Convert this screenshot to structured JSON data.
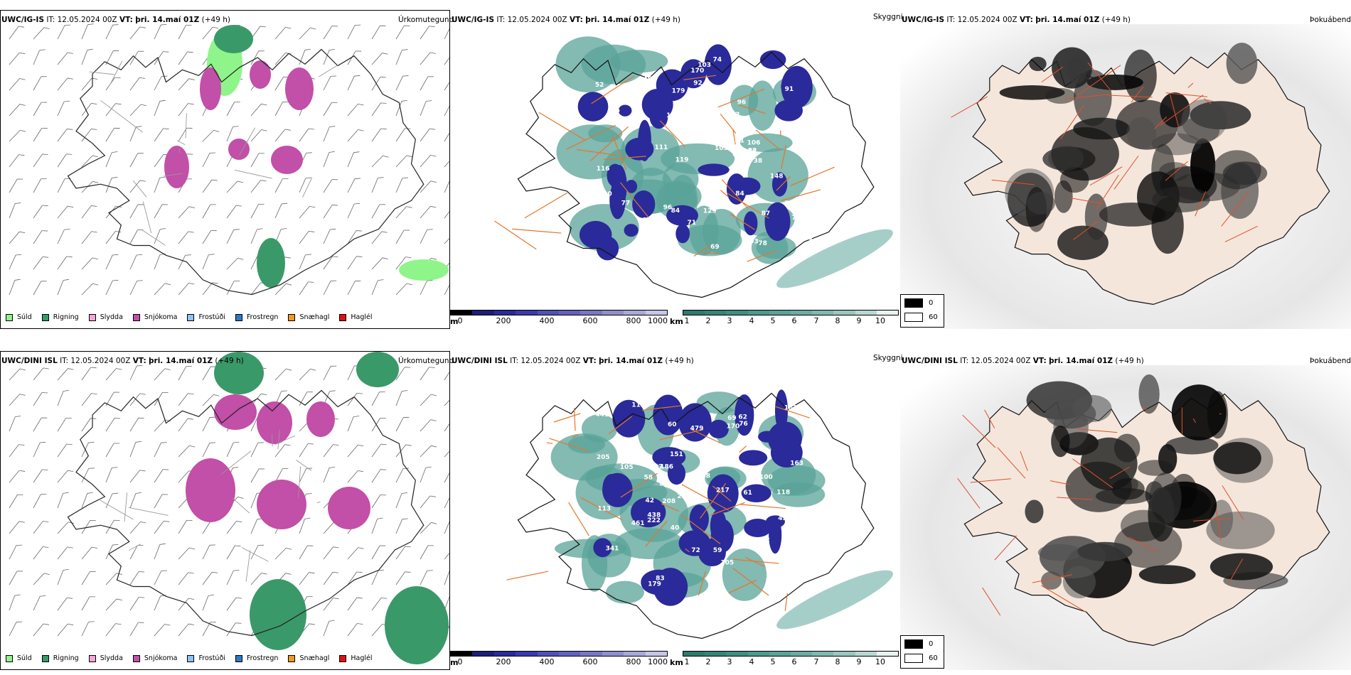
{
  "colors": {
    "drizzle": "#8ff58a",
    "rain": "#3a9968",
    "sleet": "#f4a6d8",
    "snow": "#c24fa8",
    "freezing_drizzle": "#8ec3f5",
    "freezing_rain": "#2d79c8",
    "snow_pellets": "#f2981e",
    "hail": "#e01010",
    "road": "#e5762a",
    "fog_land": "#f5e6db"
  },
  "rows": [
    {
      "left": {
        "model": "UWC/IG-IS",
        "it_label": "IT:",
        "it_value": "12.05.2024 00Z",
        "vt_label": "VT:",
        "vt_value": "þri. 14.maí 01Z",
        "lead": "(+49 h)",
        "title_right": "Úrkomutegund"
      },
      "middle": {
        "model": "UWC/IG-IS",
        "it_label": "IT:",
        "it_value": "12.05.2024 00Z",
        "vt_label": "VT:",
        "vt_value": "þri. 14.maí 01Z",
        "lead": "(+49 h)",
        "title_right": "Skyggni",
        "labels": [
          "84",
          "146",
          "69",
          "77",
          "103",
          "96",
          "84",
          "121",
          "170",
          "86",
          "116",
          "82",
          "92",
          "79",
          "96",
          "52",
          "82",
          "137",
          "72",
          "93",
          "148",
          "78",
          "111",
          "91",
          "105",
          "106",
          "163",
          "129",
          "179",
          "128",
          "76",
          "74",
          "119",
          "90",
          "109",
          "79",
          "77",
          "68",
          "78",
          "78",
          "38",
          "87",
          "71"
        ]
      },
      "right": {
        "model": "UWC/IG-IS",
        "it_label": "IT:",
        "it_value": "12.05.2024 00Z",
        "vt_label": "VT:",
        "vt_value": "þri. 14.maí 01Z",
        "lead": "(+49 h)",
        "title_right": "Þokuábendi"
      }
    },
    {
      "left": {
        "model": "UWC/DINI ISL",
        "it_label": "IT:",
        "it_value": "12.05.2024 00Z",
        "vt_label": "VT:",
        "vt_value": "þri. 14.maí 01Z",
        "lead": "(+49 h)",
        "title_right": "Úrkomutegund"
      },
      "middle": {
        "model": "UWC/DINI ISL",
        "it_label": "IT:",
        "it_value": "12.05.2024 00Z",
        "vt_label": "VT:",
        "vt_value": "þri. 14.maí 01Z",
        "lead": "(+49 h)",
        "title_right": "Skyggni",
        "labels": [
          "29",
          "479",
          "179",
          "170",
          "76",
          "69",
          "112",
          "62",
          "181",
          "287",
          "100",
          "60",
          "105",
          "186",
          "40",
          "105",
          "247",
          "438",
          "80",
          "113",
          "151",
          "258",
          "118",
          "441",
          "234",
          "387",
          "160",
          "328",
          "461",
          "97",
          "83",
          "208",
          "217",
          "102",
          "58",
          "70",
          "182",
          "222",
          "168",
          "205",
          "61",
          "341",
          "72",
          "163",
          "45",
          "59",
          "42"
        ]
      },
      "right": {
        "model": "UWC/DINI ISL",
        "it_label": "IT:",
        "it_value": "12.05.2024 00Z",
        "vt_label": "VT:",
        "vt_value": "þri. 14.maí 01Z",
        "lead": "(+49 h)",
        "title_right": "Þokuábendi"
      }
    }
  ],
  "precip_legend": [
    "Súld",
    "Rigning",
    "Slydda",
    "Snjókoma",
    "Frostúði",
    "Frostregn",
    "Snæhagl",
    "Haglél"
  ],
  "ceiling_bar": {
    "unit": "m",
    "ticks": [
      "0",
      "200",
      "400",
      "600",
      "800",
      "1000"
    ]
  },
  "visibility_bar": {
    "unit": "km",
    "ticks": [
      "1",
      "2",
      "3",
      "4",
      "5",
      "6",
      "7",
      "8",
      "9",
      "10"
    ]
  },
  "fog_legend": [
    "0",
    "60"
  ]
}
